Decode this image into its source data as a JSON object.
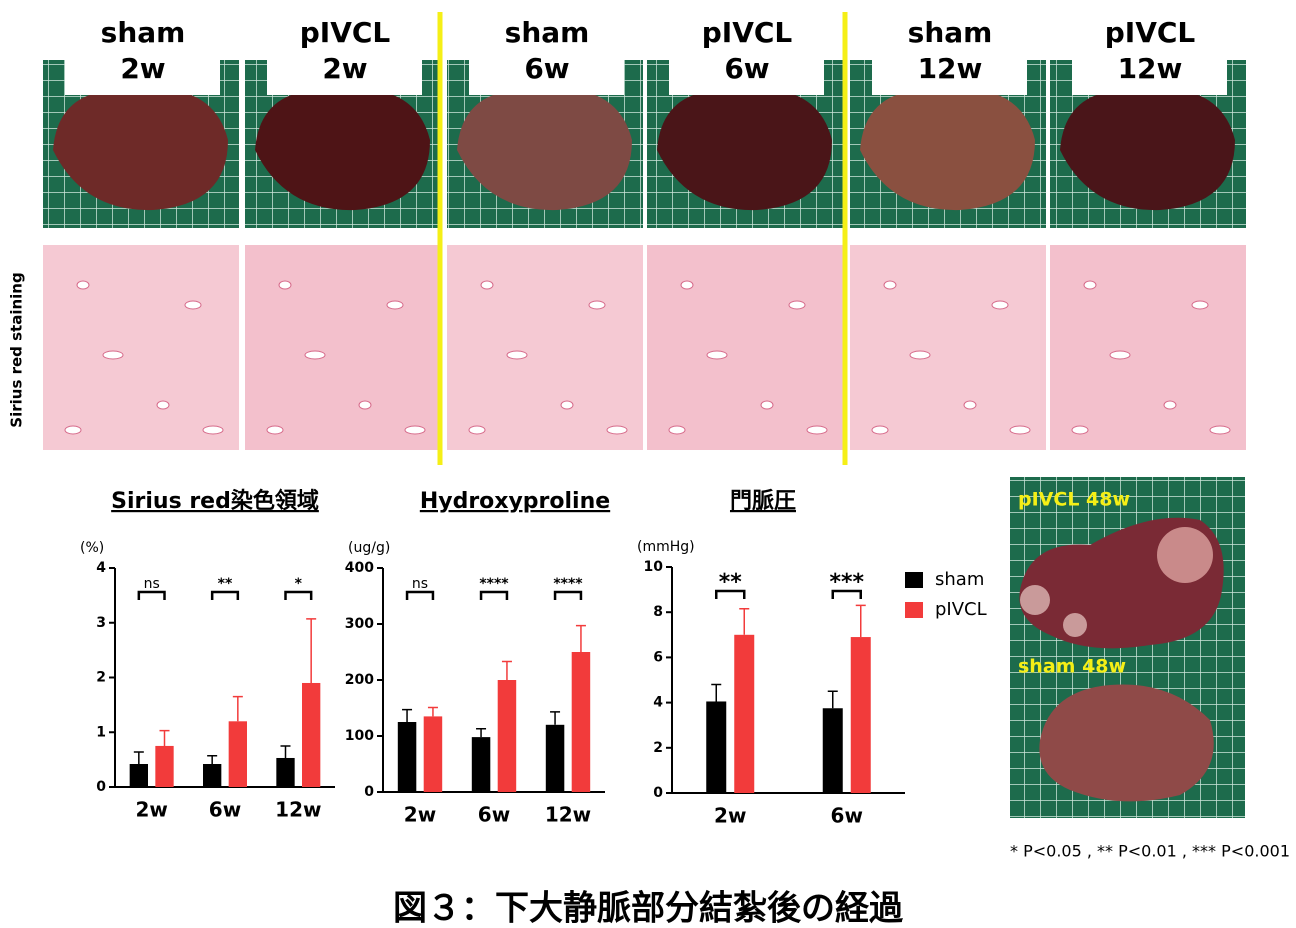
{
  "headers": [
    [
      "sham",
      "2w"
    ],
    [
      "pIVCL",
      "2w"
    ],
    [
      "sham",
      "6w"
    ],
    [
      "pIVCL",
      "6w"
    ],
    [
      "sham",
      "12w"
    ],
    [
      "pIVCL",
      "12w"
    ]
  ],
  "row_label": "Sirius red staining",
  "photo_labels": [
    "pIVCL 48w",
    "sham 48w"
  ],
  "chart_data": [
    {
      "type": "bar",
      "title": "Sirius red染色領域",
      "y_label": "(%)",
      "categories": [
        "2w",
        "6w",
        "12w"
      ],
      "series": [
        {
          "color": "#000000",
          "values": [
            0.42,
            0.42,
            0.53
          ],
          "errors": [
            0.22,
            0.15,
            0.22
          ]
        },
        {
          "color": "#f23b3b",
          "values": [
            0.75,
            1.2,
            1.9
          ],
          "errors": [
            0.28,
            0.45,
            1.17
          ]
        }
      ],
      "significance": [
        "ns",
        "**",
        "*"
      ],
      "ylim": [
        0,
        4
      ],
      "yticks": [
        0,
        1,
        2,
        3,
        4
      ]
    },
    {
      "type": "bar",
      "title": "Hydroxyproline",
      "y_label": "(ug/g)",
      "categories": [
        "2w",
        "6w",
        "12w"
      ],
      "series": [
        {
          "color": "#000000",
          "values": [
            125,
            98,
            120
          ],
          "errors": [
            22,
            15,
            23
          ]
        },
        {
          "color": "#f23b3b",
          "values": [
            135,
            200,
            250
          ],
          "errors": [
            16,
            33,
            47
          ]
        }
      ],
      "significance": [
        "ns",
        "****",
        "****"
      ],
      "ylim": [
        0,
        400
      ],
      "yticks": [
        0,
        100,
        200,
        300,
        400
      ]
    },
    {
      "type": "bar",
      "title": "門脈圧",
      "y_label": "(mmHg)",
      "categories": [
        "2w",
        "6w"
      ],
      "series": [
        {
          "name": "sham",
          "color": "#000000",
          "values": [
            4.05,
            3.75
          ],
          "errors": [
            0.75,
            0.75
          ]
        },
        {
          "name": "pIVCL",
          "color": "#f23b3b",
          "values": [
            7.0,
            6.9
          ],
          "errors": [
            1.15,
            1.4
          ]
        }
      ],
      "significance": [
        "**",
        "***"
      ],
      "ylim": [
        0,
        10
      ],
      "yticks": [
        0,
        2,
        4,
        6,
        8,
        10
      ],
      "legend": "right"
    }
  ],
  "footnote": "* P<0.05 , ** P<0.01 , *** P<0.001",
  "caption": "図３：下大静脈部分結紮後の経過"
}
